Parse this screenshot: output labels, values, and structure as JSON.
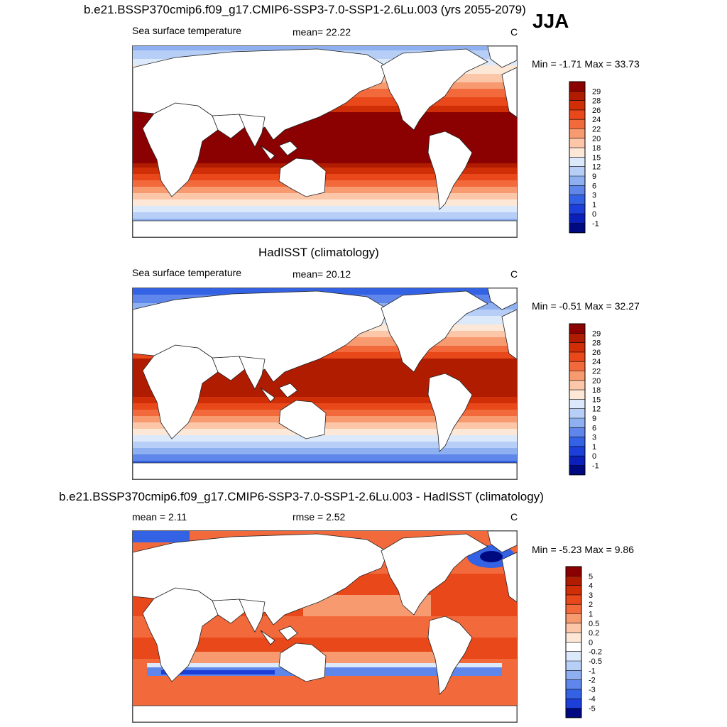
{
  "season": "JJA",
  "unit_label": "C",
  "panels": [
    {
      "id": "model",
      "title": "b.e21.BSSP370cmip6.f09_g17.CMIP6-SSP3-7.0-SSP1-2.6Lu.003 (yrs 2055-2079)",
      "variable": "Sea surface temperature",
      "mean_text": "mean=  22.22",
      "unit": "C",
      "minmax_text": "Min =  -1.71 Max =  33.73",
      "colorbar_levels": [
        "29",
        "28",
        "26",
        "24",
        "22",
        "20",
        "18",
        "15",
        "12",
        "9",
        "6",
        "3",
        "1",
        "0",
        "-1"
      ]
    },
    {
      "id": "obs",
      "title": "HadISST (climatology)",
      "variable": "Sea surface temperature",
      "mean_text": "mean=  20.12",
      "unit": "C",
      "minmax_text": "Min =  -0.51 Max =  32.27",
      "colorbar_levels": [
        "29",
        "28",
        "26",
        "24",
        "22",
        "20",
        "18",
        "15",
        "12",
        "9",
        "6",
        "3",
        "1",
        "0",
        "-1"
      ]
    },
    {
      "id": "diff",
      "title": "b.e21.BSSP370cmip6.f09_g17.CMIP6-SSP3-7.0-SSP1-2.6Lu.003 - HadISST (climatology)",
      "mean_text": "mean =   2.11",
      "rmse_text": "rmse =   2.52",
      "unit": "C",
      "minmax_text": "Min =  -5.23 Max =   9.86",
      "colorbar_levels": [
        "5",
        "4",
        "3",
        "2",
        "1",
        "0.5",
        "0.2",
        "0",
        "-0.2",
        "-0.5",
        "-1",
        "-2",
        "-3",
        "-4",
        "-5"
      ]
    }
  ],
  "colors": {
    "sst_scale": [
      "#8b0000",
      "#b01c00",
      "#d02e06",
      "#e8481a",
      "#f26a3c",
      "#f89a70",
      "#fcc6a8",
      "#fde8d8",
      "#dce9fb",
      "#b7cff6",
      "#8fb0f0",
      "#5f86ea",
      "#3462e4",
      "#1b3fd8",
      "#0a20b8",
      "#000a80"
    ],
    "diff_scale": [
      "#8b0000",
      "#b01c00",
      "#d02e06",
      "#e8481a",
      "#f26a3c",
      "#f89a70",
      "#fcc6a8",
      "#fde8d8",
      "#ffffff",
      "#dce9fb",
      "#b7cff6",
      "#8fb0f0",
      "#5f86ea",
      "#3462e4",
      "#1b3fd8",
      "#000a80"
    ]
  }
}
